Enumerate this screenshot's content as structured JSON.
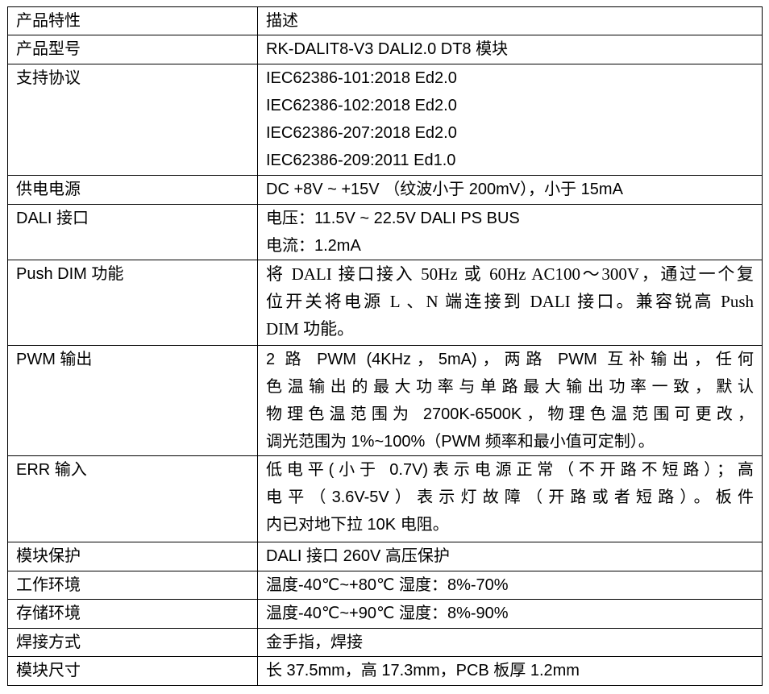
{
  "table": {
    "header": [
      "产品特性",
      "描述"
    ],
    "rows": [
      {
        "feature": "产品型号",
        "lines": [
          "RK-DALIT8-V3 DALI2.0 DT8 模块"
        ]
      },
      {
        "feature": "支持协议",
        "lines": [
          "IEC62386-101:2018 Ed2.0",
          "IEC62386-102:2018 Ed2.0",
          "IEC62386-207:2018 Ed2.0",
          "IEC62386-209:2011 Ed1.0"
        ]
      },
      {
        "feature": "供电电源",
        "lines": [
          "DC +8V ~ +15V （纹波小于 200mV），小于 15mA"
        ]
      },
      {
        "feature": "DALI 接口",
        "lines": [
          "电压：11.5V ~ 22.5V DALI PS BUS",
          "电流：1.2mA"
        ]
      },
      {
        "feature": "Push DIM 功能",
        "lines": [
          "将 DALI 接口接入 50Hz 或 60Hz AC100～300V，通过一个复",
          "位开关将电源 L 、N 端连接到 DALI 接口。兼容锐高 Push",
          "DIM 功能。"
        ]
      },
      {
        "feature": "PWM 输出",
        "lines": [
          "2 路 PWM (4KHz，5mA)，两路 PWM 互补输出，任何",
          "色温输出的最大功率与单路最大输出功率一致，默认",
          "物理色温范围为 2700K-6500K，物理色温范围可更改，",
          "调光范围为 1%~100%（PWM 频率和最小值可定制）。"
        ]
      },
      {
        "feature": "ERR 输入",
        "lines": [
          "低电平(小于 0.7V)表示电源正常（不开路不短路）；高",
          "电平（3.6V-5V）表示灯故障（开路或者短路）。板件",
          "内已对地下拉 10K 电阻。"
        ]
      },
      {
        "feature": "模块保护",
        "lines": [
          "DALI 接口 260V 高压保护"
        ]
      },
      {
        "feature": "工作环境",
        "lines": [
          "温度-40℃~+80℃ 湿度：8%-70%"
        ]
      },
      {
        "feature": "存储环境",
        "lines": [
          "温度-40℃~+90℃ 湿度：8%-90%"
        ]
      },
      {
        "feature": "焊接方式",
        "lines": [
          "金手指，焊接"
        ]
      },
      {
        "feature": "模块尺寸",
        "lines": [
          "长 37.5mm，高 17.3mm，PCB 板厚 1.2mm"
        ]
      }
    ]
  }
}
